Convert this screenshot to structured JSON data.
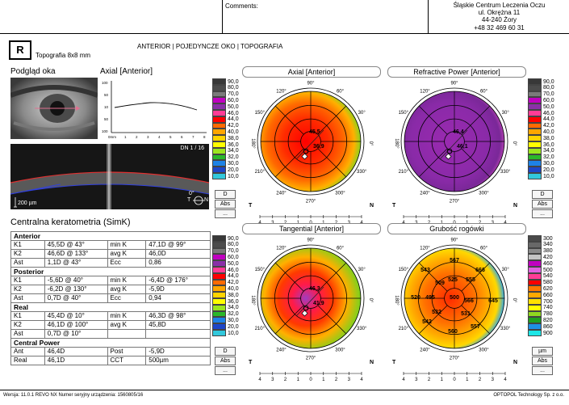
{
  "header": {
    "comments_label": "Comments:",
    "clinic": [
      "Śląskie Centrum Leczenia Oczu",
      "ul. Okrężna 11",
      "44-240 Żory",
      "+48 32 469 60 31"
    ]
  },
  "eye": {
    "side": "R",
    "exam": "Topografia  8x8 mm",
    "mode": "ANTERIOR | POJEDYNCZE OKO | TOPOGRAFIA"
  },
  "preview": {
    "title": "Podgląd oka",
    "axial_title": "Axial [Anterior]",
    "graph_y_labels": [
      "100",
      "50",
      "10",
      "50",
      "100"
    ],
    "graph_x_unit": "0mm",
    "graph_x_labels": [
      "1",
      "2",
      "3",
      "4",
      "5",
      "6",
      "7",
      "8"
    ],
    "oct_label": "DN  1 / 16",
    "oct_scale": "200 µm",
    "oct_angle": "0°",
    "oct_t": "T",
    "oct_n": "N"
  },
  "simk": {
    "title": "Centralna keratometria (SimK)",
    "sections": [
      {
        "name": "Anterior",
        "rows": [
          [
            "K1",
            "45,5D @ 43°",
            "min K",
            "47,1D @ 99°"
          ],
          [
            "K2",
            "46,6D @ 133°",
            "avg K",
            "46,0D"
          ],
          [
            "Ast",
            "1,1D @ 43°",
            "Ecc",
            "0,86"
          ]
        ]
      },
      {
        "name": "Posterior",
        "rows": [
          [
            "K1",
            "-5,6D @ 40°",
            "min K",
            "-6,4D @ 176°"
          ],
          [
            "K2",
            "-6,2D @ 130°",
            "avg K",
            "-5,9D"
          ],
          [
            "Ast",
            "0,7D @ 40°",
            "Ecc",
            "0,94"
          ]
        ]
      },
      {
        "name": "Real",
        "rows": [
          [
            "K1",
            "45,4D @ 10°",
            "min K",
            "46,3D @ 98°"
          ],
          [
            "K2",
            "46,1D @ 100°",
            "avg K",
            "45,8D"
          ],
          [
            "Ast",
            "0,7D @ 10°",
            "",
            ""
          ]
        ]
      },
      {
        "name": "Central Power",
        "rows": [
          [
            "Ant",
            "46,4D",
            "Post",
            "-5,9D"
          ],
          [
            "Real",
            "46,1D",
            "CCT",
            "500µm"
          ]
        ]
      }
    ]
  },
  "maps": [
    {
      "title": "Axial [Anterior]",
      "values": [
        "45,5",
        "36,9"
      ]
    },
    {
      "title": "Refractive Power [Anterior]",
      "values": [
        "46,4",
        "46,1"
      ]
    },
    {
      "title": "Tangential [Anterior]",
      "values": [
        "46,3",
        "41,9"
      ]
    },
    {
      "title": "Grubość rogówki",
      "values": [
        "567",
        "666",
        "543",
        "525",
        "555",
        "509",
        "520",
        "495",
        "500",
        "566",
        "645",
        "542",
        "560",
        "557",
        "532",
        "531"
      ]
    }
  ],
  "angle_labels": [
    "90°",
    "60°",
    "30°",
    "0°",
    "330°",
    "300°",
    "270°",
    "240°",
    "210°",
    "180°",
    "150°",
    "120°"
  ],
  "axis_ticks": [
    "4",
    "3",
    "2",
    "1",
    "0",
    "1",
    "2",
    "3",
    "4"
  ],
  "axis_t": "T",
  "axis_n": "N",
  "scale_diopter": [
    "90,0",
    "80,0",
    "70,0",
    "60,0",
    "50,0",
    "46,0",
    "44,0",
    "42,0",
    "40,0",
    "38,0",
    "36,0",
    "34,0",
    "32,0",
    "30,0",
    "20,0",
    "10,0"
  ],
  "scale_thickness": [
    "300",
    "340",
    "380",
    "420",
    "460",
    "500",
    "540",
    "580",
    "620",
    "660",
    "700",
    "740",
    "780",
    "820",
    "860",
    "900"
  ],
  "buttons": {
    "d": "D",
    "abs": "Abs",
    "more": "...",
    "um": "µm"
  },
  "footer": {
    "left": "Wersja: 11.0.1     REVO NX    Numer seryjny urządzenia: 1560805/16",
    "right": "OPTOPOL Technology Sp. z o.o."
  },
  "colors": {
    "scale_diopter": [
      "#383838",
      "#4c4c4c",
      "#7a7a7a",
      "#c000c0",
      "#8a30a8",
      "#ff3c96",
      "#ff0000",
      "#ff6a00",
      "#ffa600",
      "#ffd400",
      "#ffff00",
      "#9ce61e",
      "#2ab82a",
      "#1e82e6",
      "#1e46c8",
      "#32c8dc"
    ],
    "scale_thickness": [
      "#4a4a4a",
      "#686868",
      "#8a8a8a",
      "#c4c4c4",
      "#c000c0",
      "#e060e0",
      "#ff3c96",
      "#ff0000",
      "#ff7800",
      "#ffaa00",
      "#ffe000",
      "#ffff00",
      "#90d820",
      "#20a020",
      "#1e90e6",
      "#1ee6e6"
    ]
  }
}
